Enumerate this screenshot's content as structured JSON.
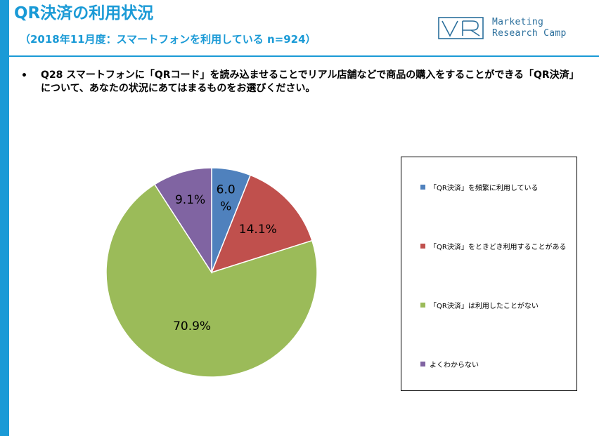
{
  "header": {
    "title": "QR決済の利用状況",
    "subtitle": "（2018年11月度：スマートフォンを利用している n=924）",
    "logo_text_line1": "Marketing",
    "logo_text_line2": "Research Camp",
    "logo_icon": "vr-logo-icon"
  },
  "question": {
    "bullet": "•",
    "text": "Q28 スマートフォンに「QRコード」を読み込ませることでリアル店舗などで商品の購入をすることができる「QR決済」について、あなたの状況にあてはまるものをお選びください。"
  },
  "colors": {
    "accent": "#1a9ad6",
    "slice_1": "#4f81bd",
    "slice_2": "#c0504d",
    "slice_3": "#9bbb59",
    "slice_4": "#8064a2"
  },
  "chart_data": {
    "type": "pie",
    "categories": [
      "「QR決済」を頻繁に利用している",
      "「QR決済」をときどき利用することがある",
      "「QR決済」は利用したことがない",
      "よくわからない"
    ],
    "values": [
      6.0,
      14.1,
      70.9,
      9.1
    ],
    "labels": [
      "6.0\n%",
      "14.1%",
      "70.9%",
      "9.1%"
    ],
    "unit": "%",
    "legend_position": "right"
  }
}
